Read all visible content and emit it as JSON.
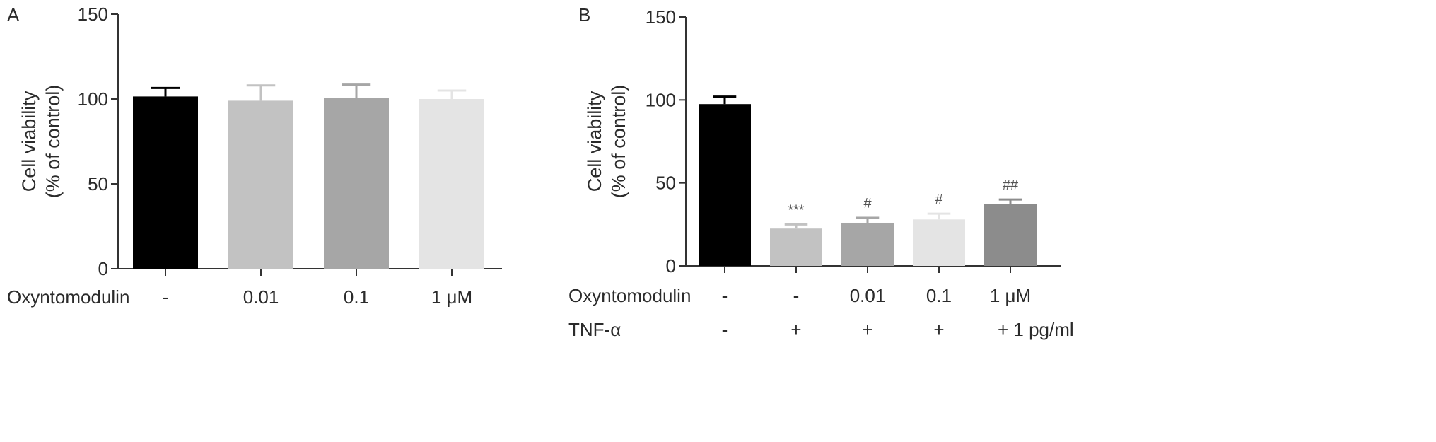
{
  "chart_data": [
    {
      "type": "bar",
      "panel": "A",
      "ylabel_line1": "Cell viability",
      "ylabel_line2": "(% of control)",
      "ylim": [
        0,
        150
      ],
      "yticks": [
        "0",
        "50",
        "100",
        "150"
      ],
      "rows": [
        {
          "label": "Oxyntomodulin",
          "values": [
            "-",
            "0.01",
            "0.1",
            "1 μM"
          ]
        }
      ],
      "values": [
        101.5,
        99,
        100.5,
        100
      ],
      "errors": [
        5,
        9,
        8,
        5
      ],
      "colors": [
        "#000000",
        "#c2c2c2",
        "#a6a6a6",
        "#e4e4e4"
      ],
      "annotations": [
        "",
        "",
        "",
        ""
      ],
      "grid": false
    },
    {
      "type": "bar",
      "panel": "B",
      "ylabel_line1": "Cell viability",
      "ylabel_line2": "(% of control)",
      "ylim": [
        0,
        150
      ],
      "yticks": [
        "0",
        "50",
        "100",
        "150"
      ],
      "rows": [
        {
          "label": "Oxyntomodulin",
          "values": [
            "-",
            "-",
            "0.01",
            "0.1",
            "1 μM"
          ]
        },
        {
          "label": "TNF-α",
          "values": [
            "-",
            "+",
            "+",
            "+",
            "+ 1 pg/ml"
          ]
        }
      ],
      "values": [
        97.5,
        22.5,
        26,
        28,
        37.5
      ],
      "errors": [
        4.5,
        2.5,
        3,
        3.5,
        2.5
      ],
      "colors": [
        "#000000",
        "#c2c2c2",
        "#a6a6a6",
        "#e4e4e4",
        "#8c8c8c"
      ],
      "annotations": [
        "",
        "***",
        "#",
        "#",
        "##"
      ],
      "grid": false
    }
  ]
}
